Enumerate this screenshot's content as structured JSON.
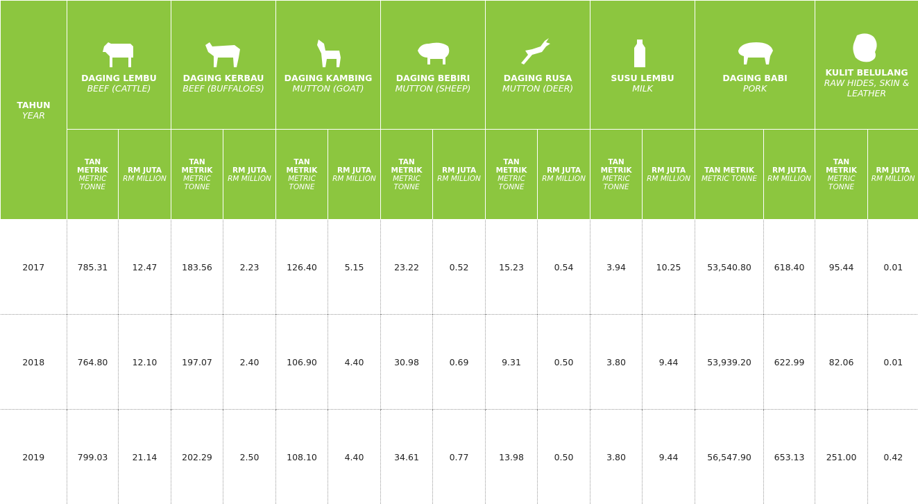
{
  "header": {
    "year": {
      "label": "TAHUN",
      "sub": "YEAR"
    },
    "groups": [
      {
        "title": "DAGING LEMBU",
        "subtitle": "BEEF (CATTLE)"
      },
      {
        "title": "DAGING KERBAU",
        "subtitle": "BEEF (BUFFALOES)"
      },
      {
        "title": "DAGING KAMBING",
        "subtitle": "MUTTON (GOAT)"
      },
      {
        "title": "DAGING BEBIRI",
        "subtitle": "MUTTON (SHEEP)"
      },
      {
        "title": "DAGING RUSA",
        "subtitle": "MUTTON (DEER)"
      },
      {
        "title": "SUSU LEMBU",
        "subtitle": "MILK"
      },
      {
        "title": "DAGING BABI",
        "subtitle": "PORK"
      },
      {
        "title": "KULIT BELULANG",
        "subtitle": "RAW HIDES, SKIN & LEATHER"
      }
    ],
    "units": [
      {
        "label": "TAN METRIK",
        "sub": "METRIC TONNE"
      },
      {
        "label": "RM JUTA",
        "sub": "RM MILLION"
      }
    ]
  },
  "table": {
    "rows": [
      [
        "2017",
        "785.31",
        "12.47",
        "183.56",
        "2.23",
        "126.40",
        "5.15",
        "23.22",
        "0.52",
        "15.23",
        "0.54",
        "3.94",
        "10.25",
        "53,540.80",
        "618.40",
        "95.44",
        "0.01"
      ],
      [
        "2018",
        "764.80",
        "12.10",
        "197.07",
        "2.40",
        "106.90",
        "4.40",
        "30.98",
        "0.69",
        "9.31",
        "0.50",
        "3.80",
        "9.44",
        "53,939.20",
        "622.99",
        "82.06",
        "0.01"
      ],
      [
        "2019",
        "799.03",
        "21.14",
        "202.29",
        "2.50",
        "108.10",
        "4.40",
        "34.61",
        "0.77",
        "13.98",
        "0.50",
        "3.80",
        "9.44",
        "56,547.90",
        "653.13",
        "251.00",
        "0.42"
      ]
    ]
  }
}
